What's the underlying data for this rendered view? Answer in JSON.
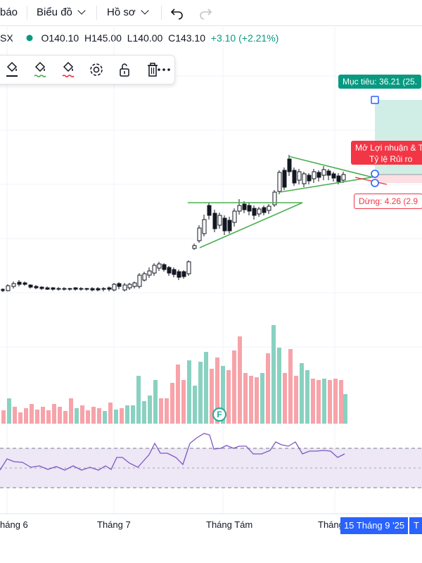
{
  "topbar": {
    "alert_label": "báo",
    "chart_type_label": "Biểu đồ",
    "profile_label": "Hồ sơ",
    "undo_icon": "undo-icon",
    "redo_icon": "redo-icon"
  },
  "symbol": {
    "ticker_fragment": "SX",
    "open": "O140.10",
    "high": "H145.00",
    "low": "L140.00",
    "close": "C143.10",
    "change": "+3.10 (+2.21%)",
    "status_color": "#089981"
  },
  "drawing_toolbar": {
    "icons": [
      "paint-bucket-icon",
      "fill-color-icon",
      "line-color-icon",
      "settings-icon",
      "unlock-icon",
      "trash-icon",
      "more-icon"
    ]
  },
  "position_tool": {
    "target_label": "Mục tiêu: 36.21 (25.",
    "profit_line1": "Mở Lợi nhuận & T",
    "profit_line2": "Tỷ lệ Rủi ro",
    "stop_label": "Dừng: 4.26 (2.9",
    "profit_color": "#089981",
    "loss_color": "#f23645"
  },
  "event_marker": "F",
  "x_axis": {
    "labels": [
      "háng 6",
      "Tháng 7",
      "Tháng Tám",
      "Tháng"
    ],
    "current_date": "15 Tháng 9 '25",
    "next_fragment": "T"
  },
  "colors": {
    "up_volume": "#89d1c1",
    "down_volume": "#f7a3a9",
    "rsi_line": "#7e57c2",
    "rsi_band": "#ede7f6",
    "trendline": "#4caf50",
    "accent": "#2962ff"
  }
}
